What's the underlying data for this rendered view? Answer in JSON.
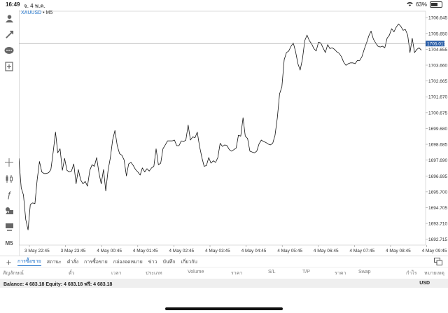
{
  "status_bar": {
    "time": "16:49",
    "date": "จ. 4 พ.ค.",
    "battery": "63%",
    "battery_level": 0.63
  },
  "toolbar": {
    "icons": [
      "user-icon",
      "order-icon",
      "chat-icon",
      "add-indicator-icon",
      "crosshair-icon",
      "candlestick-icon",
      "function-icon",
      "objects-icon",
      "templates-icon"
    ],
    "timeframe": "M5"
  },
  "symbol": {
    "name": "XAUUSD",
    "sep": " • ",
    "timeframe": "M5"
  },
  "chart_data": {
    "type": "line",
    "symbol": "XAUUSD",
    "timeframe": "M5",
    "ylim": [
      1692.35,
      1707.05
    ],
    "y_ticks": [
      "1706.645",
      "1705.650",
      "1704.655",
      "1703.660",
      "1702.665",
      "1701.670",
      "1700.675",
      "1699.680",
      "1698.685",
      "1697.690",
      "1696.695",
      "1695.700",
      "1694.705",
      "1693.710",
      "1692.715"
    ],
    "x_ticks": [
      "3 May 22:45",
      "3 May 23:45",
      "4 May 00:45",
      "4 May 01:45",
      "4 May 02:45",
      "4 May 03:45",
      "4 May 04:45",
      "4 May 05:45",
      "4 May 06:45",
      "4 May 07:45",
      "4 May 08:45",
      "4 May 09:45"
    ],
    "current_price": "1705.017",
    "current_price_value": 1705.017,
    "series": [
      {
        "values": [
          1697.8,
          1695.95,
          1695.5,
          1693.95,
          1693.3,
          1694.9,
          1695.0,
          1694.95,
          1696.45,
          1697.6,
          1696.95,
          1696.85,
          1696.85,
          1696.9,
          1697.1,
          1698.2,
          1699.45,
          1698.15,
          1698.4,
          1697.05,
          1697.8,
          1697.05,
          1696.95,
          1697.0,
          1697.45,
          1696.2,
          1697.1,
          1696.45,
          1696.2,
          1696.35,
          1696.05,
          1697.05,
          1697.4,
          1697.3,
          1697.85,
          1696.9,
          1696.2,
          1697.1,
          1695.75,
          1697.05,
          1697.85,
          1698.95,
          1699.55,
          1698.6,
          1698.1,
          1698.0,
          1697.7,
          1696.7,
          1697.45,
          1697.55,
          1697.35,
          1697.1,
          1696.95,
          1696.75,
          1697.2,
          1696.95,
          1697.15,
          1697.0,
          1697.2,
          1697.3,
          1698.4,
          1697.4,
          1697.5,
          1698.4,
          1698.65,
          1698.9,
          1698.9,
          1698.9,
          1698.95,
          1698.6,
          1698.6,
          1698.9,
          1698.85,
          1698.95,
          1699.9,
          1698.95,
          1699.15,
          1699.1,
          1699.45,
          1698.55,
          1697.85,
          1697.3,
          1697.35,
          1697.85,
          1697.5,
          1697.65,
          1697.55,
          1697.85,
          1698.75,
          1698.55,
          1698.65,
          1698.6,
          1698.35,
          1698.25,
          1698.35,
          1698.45,
          1699.25,
          1699.2,
          1700.35,
          1699.2,
          1699.05,
          1698.25,
          1698.2,
          1698.15,
          1698.25,
          1698.7,
          1698.95,
          1698.85,
          1698.8,
          1698.7,
          1698.65,
          1698.75,
          1699.25,
          1700.35,
          1701.85,
          1702.3,
          1704.0,
          1704.45,
          1704.55,
          1704.85,
          1705.05,
          1704.5,
          1703.75,
          1703.35,
          1704.05,
          1705.2,
          1705.55,
          1705.2,
          1705.0,
          1704.7,
          1704.55,
          1705.1,
          1705.05,
          1704.75,
          1704.45,
          1704.95,
          1704.7,
          1704.75,
          1704.65,
          1704.5,
          1704.4,
          1704.2,
          1703.85,
          1703.65,
          1703.75,
          1703.8,
          1703.8,
          1703.75,
          1703.95,
          1703.95,
          1704.2,
          1704.65,
          1705.05,
          1705.5,
          1705.8,
          1705.3,
          1705.05,
          1704.85,
          1704.8,
          1704.85,
          1704.75,
          1705.35,
          1705.55,
          1705.95,
          1705.75,
          1706.05,
          1706.25,
          1706.1,
          1705.85,
          1705.9,
          1705.55,
          1704.45,
          1705.35,
          1704.45,
          1704.65,
          1704.75,
          1704.6
        ]
      }
    ]
  },
  "tabs": {
    "items": [
      "การซื้อขาย",
      "สถานะ",
      "คำสั่ง",
      "การซื้อขาย",
      "กล่องจดหมาย",
      "ข่าว",
      "บันทึก",
      "เกี่ยวกับ"
    ],
    "active": 0
  },
  "columns": [
    "สัญลักษณ์",
    "ตั๋ว",
    "เวลา",
    "ประเภท",
    "Volume",
    "ราคา",
    "S/L",
    "T/P",
    "ราคา",
    "Swap",
    "กำไร",
    "หมายเหตุ"
  ],
  "balance": {
    "text": "Balance: 4 683.18 Equity: 4 683.18 ฟรี: 4 683.18",
    "currency": "USD"
  },
  "colors": {
    "accent": "#1a6fc9",
    "price_tag": "#2b5ea7",
    "line": "#111111"
  }
}
